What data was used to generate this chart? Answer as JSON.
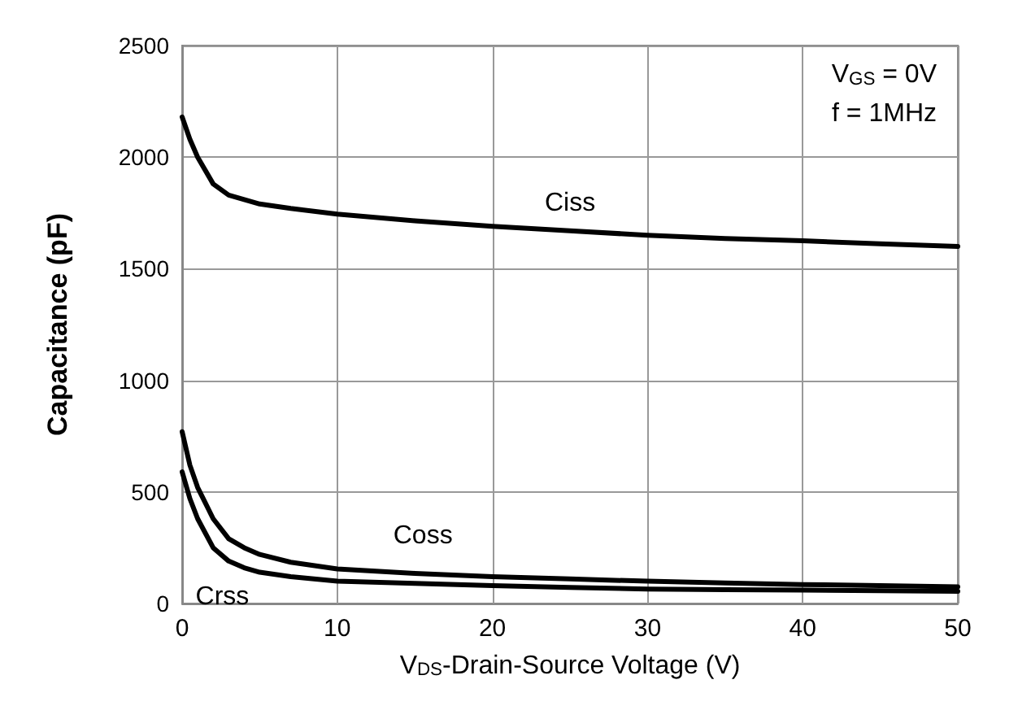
{
  "chart_data": {
    "type": "line",
    "xlabel": "V$_{DS}$-Drain-Source Voltage (V)",
    "ylabel": "Capacitance (pF)",
    "x": [
      0,
      0.5,
      1,
      2,
      3,
      4,
      5,
      7,
      10,
      15,
      20,
      25,
      30,
      35,
      40,
      45,
      50
    ],
    "series": [
      {
        "name": "Ciss",
        "color": "#000000",
        "values": [
          2180,
          2080,
          2000,
          1880,
          1830,
          1810,
          1790,
          1770,
          1745,
          1715,
          1690,
          1670,
          1650,
          1635,
          1625,
          1612,
          1600
        ]
      },
      {
        "name": "Coss",
        "color": "#000000",
        "values": [
          770,
          620,
          520,
          380,
          290,
          250,
          220,
          185,
          155,
          135,
          120,
          110,
          100,
          92,
          85,
          80,
          75
        ]
      },
      {
        "name": "Crss",
        "color": "#000000",
        "values": [
          590,
          470,
          380,
          250,
          190,
          160,
          140,
          120,
          100,
          90,
          80,
          72,
          65,
          62,
          60,
          57,
          55
        ]
      }
    ],
    "xlim": [
      0,
      50
    ],
    "xticks": [
      0,
      10,
      20,
      30,
      40,
      50
    ],
    "ylim": [
      0,
      2500
    ],
    "yticks": [
      0,
      500,
      1000,
      1500,
      2000,
      2500
    ],
    "annotations": [
      "V$_{GS}$ = 0V",
      "f = 1MHz"
    ],
    "grid": true,
    "legend": false,
    "marker": "none",
    "line_style": "solid"
  }
}
